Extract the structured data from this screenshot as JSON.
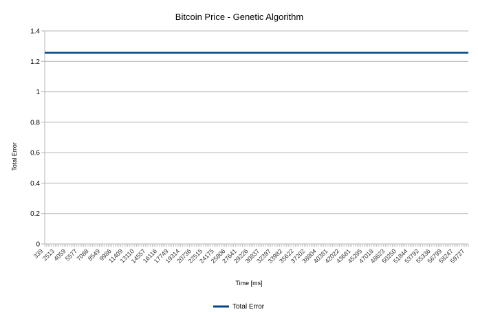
{
  "chart_data": {
    "type": "line",
    "title": "Bitcoin Price - Genetic Algorithm",
    "xlabel": "Time [ms]",
    "ylabel": "Total Error",
    "ylim": [
      0,
      1.4
    ],
    "yticks": [
      "0",
      "0.2",
      "0.4",
      "0.6",
      "0.8",
      "1",
      "1.2",
      "1.4"
    ],
    "x_tick_labels": [
      "339",
      "2513",
      "4059",
      "5577",
      "7088",
      "8549",
      "9986",
      "11409",
      "13110",
      "14557",
      "16116",
      "17749",
      "19314",
      "20736",
      "22515",
      "24175",
      "25806",
      "27641",
      "29226",
      "30837",
      "32397",
      "33982",
      "35622",
      "37202",
      "38804",
      "40381",
      "42022",
      "43681",
      "45295",
      "47018",
      "48623",
      "50250",
      "51844",
      "53792",
      "55336",
      "56799",
      "58247",
      "59727"
    ],
    "grid": true,
    "legend_position": "bottom",
    "series": [
      {
        "name": "Total Error",
        "color": "#004586",
        "x": [
          339,
          59727
        ],
        "values": [
          1.257,
          1.257
        ]
      }
    ]
  }
}
